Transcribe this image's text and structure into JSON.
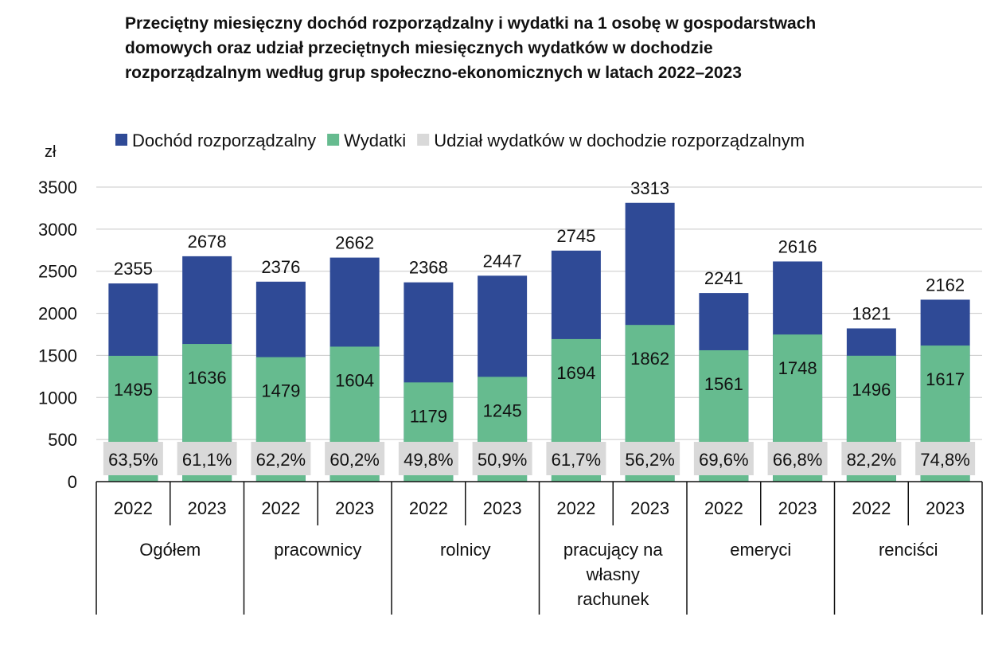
{
  "chart_data": {
    "type": "bar",
    "title_lines": [
      "Przeciętny miesięczny dochód rozporządzalny i wydatki na 1 osobę w gospodarstwach",
      "domowych oraz udział przeciętnych miesięcznych wydatków w dochodzie",
      "rozporządzalnym według grup społeczno-ekonomicznych w latach 2022–2023"
    ],
    "ylabel": "zł",
    "ylim": [
      0,
      3500
    ],
    "yticks": [
      0,
      500,
      1000,
      1500,
      2000,
      2500,
      3000,
      3500
    ],
    "grid": true,
    "legend_position": "top",
    "groups": [
      "Ogółem",
      "pracownicy",
      "rolnicy",
      "pracujący na własny rachunek",
      "emeryci",
      "renciści"
    ],
    "group_label_lines": [
      [
        "Ogółem"
      ],
      [
        "pracownicy"
      ],
      [
        "rolnicy"
      ],
      [
        "pracujący na",
        "własny",
        "rachunek"
      ],
      [
        "emeryci"
      ],
      [
        "renciści"
      ]
    ],
    "years": [
      "2022",
      "2023"
    ],
    "series": [
      {
        "name": "Dochód rozporządzalny",
        "color": "#2f4a96",
        "values": [
          2355,
          2678,
          2376,
          2662,
          2368,
          2447,
          2745,
          3313,
          2241,
          2616,
          1821,
          2162
        ]
      },
      {
        "name": "Wydatki",
        "color": "#66bb8f",
        "values": [
          1495,
          1636,
          1479,
          1604,
          1179,
          1245,
          1694,
          1862,
          1561,
          1748,
          1496,
          1617
        ]
      },
      {
        "name": "Udział wydatków w dochodzie rozporządzalnym",
        "color": "#d9d9d9",
        "values": [
          "63,5%",
          "61,1%",
          "62,2%",
          "60,2%",
          "49,8%",
          "50,9%",
          "61,7%",
          "56,2%",
          "69,6%",
          "66,8%",
          "82,2%",
          "74,8%"
        ]
      }
    ]
  }
}
